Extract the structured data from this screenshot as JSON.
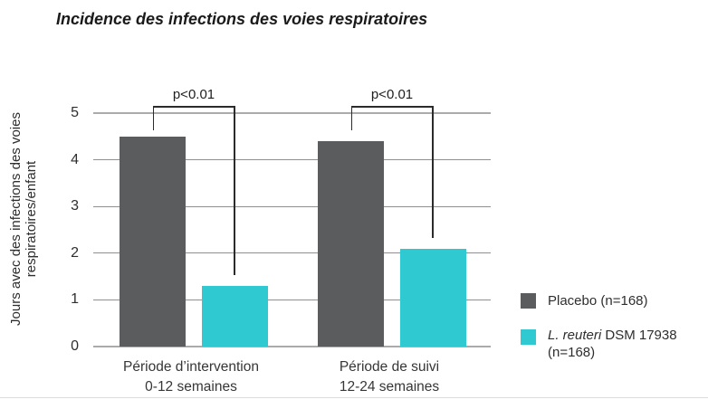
{
  "chart_data": {
    "type": "bar",
    "title": "Incidence des infections des voies respiratoires",
    "ylabel": "Jours avec des infections des voies respiratoires/enfant",
    "ylabel_lines": [
      "Jours avec des infections des voies",
      "respiratoires/enfant"
    ],
    "xlabel": "",
    "ylim": [
      0,
      5
    ],
    "yticks": [
      0,
      1,
      2,
      3,
      4,
      5
    ],
    "grid": true,
    "legend_position": "right",
    "categories": [
      "Période d’intervention 0-12 semaines",
      "Période de suivi 12-24 semaines"
    ],
    "category_lines": [
      [
        "Période d’intervention",
        "0-12 semaines"
      ],
      [
        "Période de suivi",
        "12-24 semaines"
      ]
    ],
    "series": [
      {
        "name": "Placebo (n=168)",
        "color": "#5B5C5E",
        "values": [
          4.5,
          4.4
        ]
      },
      {
        "name": "L. reuteri DSM 17938 (n=168)",
        "color": "#2EC9D1",
        "values": [
          1.3,
          2.1
        ]
      }
    ],
    "annotations": [
      {
        "group": 0,
        "label": "p<0.01"
      },
      {
        "group": 1,
        "label": "p<0.01"
      }
    ]
  },
  "legend": {
    "items": [
      {
        "name": "Placebo (n=168)",
        "color": "#5B5C5E"
      },
      {
        "name_italic": "L. reuteri",
        "name_rest": " DSM 17938",
        "name_line2": "(n=168)",
        "color": "#2EC9D1"
      }
    ]
  },
  "colors": {
    "placebo_bar": "#5B5C5E",
    "reuteri_bar": "#2EC9D1",
    "gridline_major": "#ABABAB",
    "gridline_minor": "#8F8F8F",
    "bracket": "#2B2B2B",
    "text": "#333333"
  }
}
